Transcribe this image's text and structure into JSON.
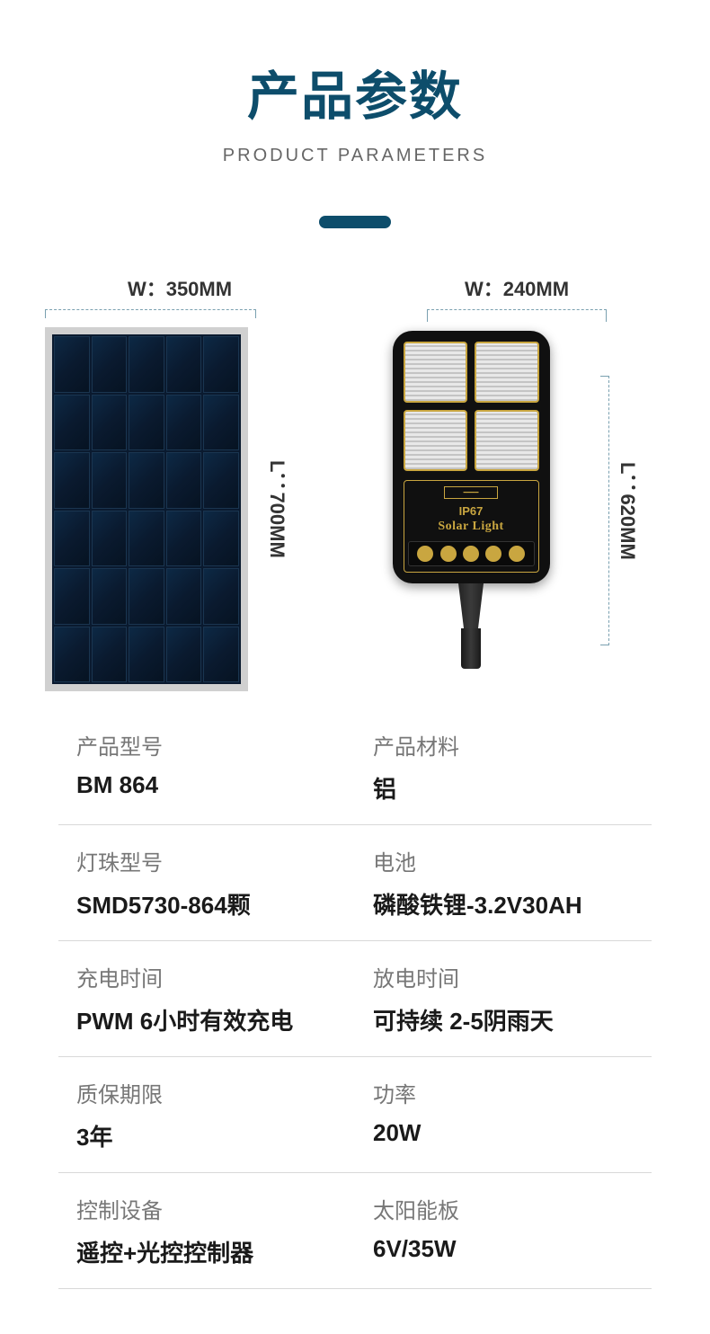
{
  "header": {
    "title_cn": "产品参数",
    "title_en": "PRODUCT PARAMETERS",
    "accent_color": "#0d4d6b"
  },
  "dimensions": {
    "panel_width": "W：350MM",
    "panel_length": "L：700MM",
    "light_width": "W：240MM",
    "light_length": "L：620MM"
  },
  "light": {
    "ip_rating": "IP67",
    "brand_text": "Solar Light"
  },
  "specs": [
    {
      "label_l": "产品型号",
      "value_l": "BM 864",
      "label_r": "产品材料",
      "value_r": "铝"
    },
    {
      "label_l": "灯珠型号",
      "value_l": "SMD5730-864颗",
      "label_r": "电池",
      "value_r": "磷酸铁锂-3.2V30AH"
    },
    {
      "label_l": "充电时间",
      "value_l": "PWM 6小时有效充电",
      "label_r": "放电时间",
      "value_r": "可持续 2-5阴雨天"
    },
    {
      "label_l": "质保期限",
      "value_l": "3年",
      "label_r": "功率",
      "value_r": "20W"
    },
    {
      "label_l": "控制设备",
      "value_l": "遥控+光控控制器",
      "label_r": "太阳能板",
      "value_r": "6V/35W"
    }
  ],
  "colors": {
    "title": "#0d4d6b",
    "label": "#777777",
    "value": "#1a1a1a",
    "border": "#d8d8d8",
    "guide": "#7aa0b0",
    "lamp_accent": "#c9a640"
  }
}
